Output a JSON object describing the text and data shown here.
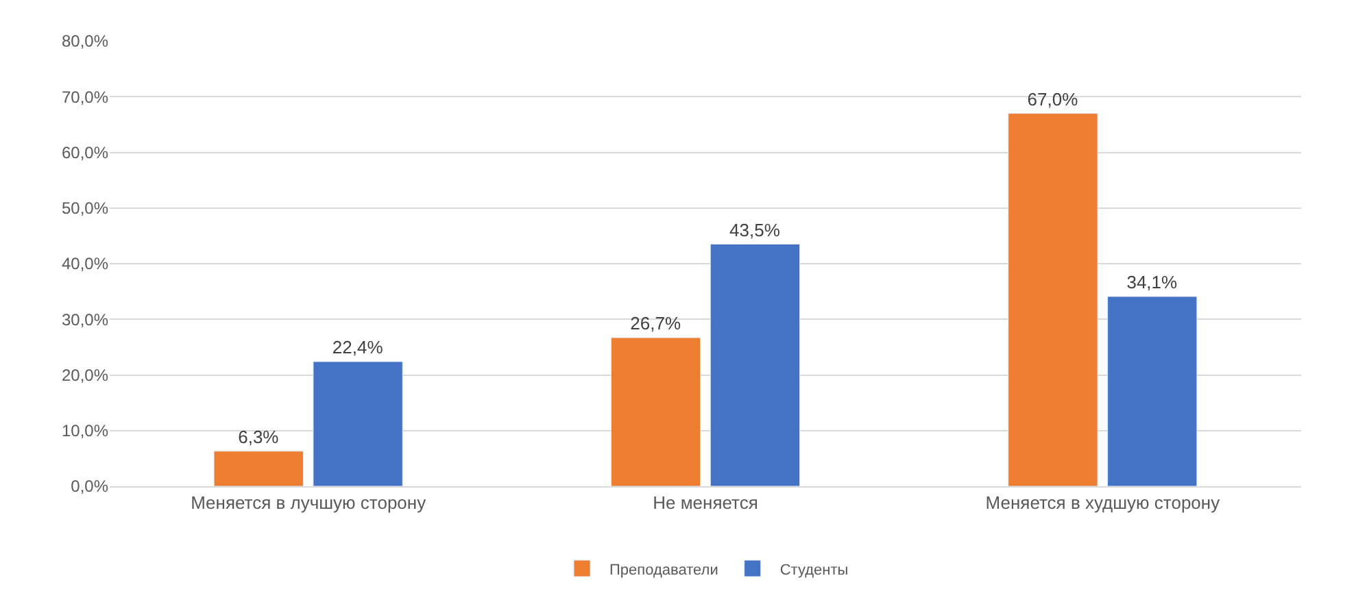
{
  "chart_data": {
    "type": "bar",
    "categories": [
      "Меняется в лучшую сторону",
      "Не меняется",
      "Меняется в худшую сторону"
    ],
    "series": [
      {
        "name": "Преподаватели",
        "color": "#ed7d31",
        "values": [
          6.3,
          26.7,
          67.0
        ],
        "value_labels": [
          "6,3%",
          "26,7%",
          "67,0%"
        ]
      },
      {
        "name": "Студенты",
        "color": "#4472c4",
        "values": [
          22.4,
          43.5,
          34.1
        ],
        "value_labels": [
          "22,4%",
          "43,5%",
          "34,1%"
        ]
      }
    ],
    "ylim": [
      0,
      80
    ],
    "yticks": [
      {
        "value": 0,
        "label": "0,0%"
      },
      {
        "value": 10,
        "label": "10,0%"
      },
      {
        "value": 20,
        "label": "20,0%"
      },
      {
        "value": 30,
        "label": "30,0%"
      },
      {
        "value": 40,
        "label": "40,0%"
      },
      {
        "value": 50,
        "label": "50,0%"
      },
      {
        "value": 60,
        "label": "60,0%"
      },
      {
        "value": 70,
        "label": "70,0%"
      },
      {
        "value": 80,
        "label": "80,0%"
      }
    ],
    "grid": "y",
    "legend": "bottom"
  }
}
